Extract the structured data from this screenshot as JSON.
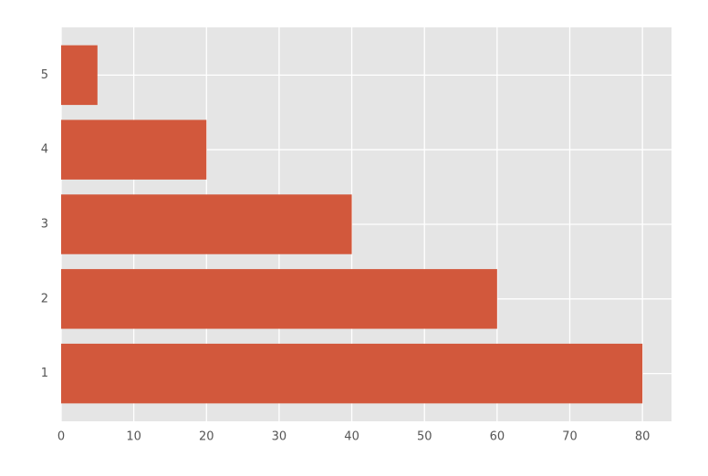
{
  "chart_data": {
    "type": "barh",
    "categories": [
      "1",
      "2",
      "3",
      "4",
      "5"
    ],
    "values": [
      80,
      60,
      40,
      20,
      5
    ],
    "color": "#d2583c",
    "xlim": [
      0,
      84
    ],
    "xticks": [
      0,
      10,
      20,
      30,
      40,
      50,
      60,
      70,
      80
    ],
    "grid": true
  }
}
